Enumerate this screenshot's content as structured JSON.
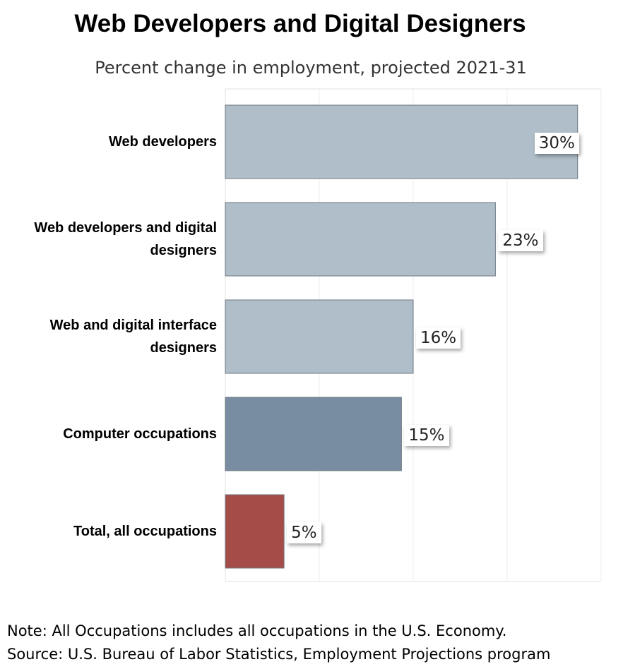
{
  "chart_data": {
    "type": "bar",
    "orientation": "horizontal",
    "title": "Web Developers and Digital Designers",
    "subtitle": "Percent change in employment, projected 2021-31",
    "categories": [
      "Web developers",
      "Web developers and digital designers",
      "Web and digital interface designers",
      "Computer occupations",
      "Total, all occupations"
    ],
    "values": [
      30,
      23,
      16,
      15,
      5
    ],
    "value_labels": [
      "30%",
      "23%",
      "16%",
      "15%",
      "5%"
    ],
    "bar_colors": [
      "#b0bec9",
      "#b0bec9",
      "#b0bec9",
      "#798da2",
      "#a54c48"
    ],
    "xlim": [
      0,
      32
    ],
    "grid": true,
    "legend": "none"
  },
  "notes": {
    "note": "Note: All Occupations includes all occupations in the U.S. Economy.",
    "source": "Source: U.S. Bureau of Labor Statistics, Employment Projections program"
  }
}
